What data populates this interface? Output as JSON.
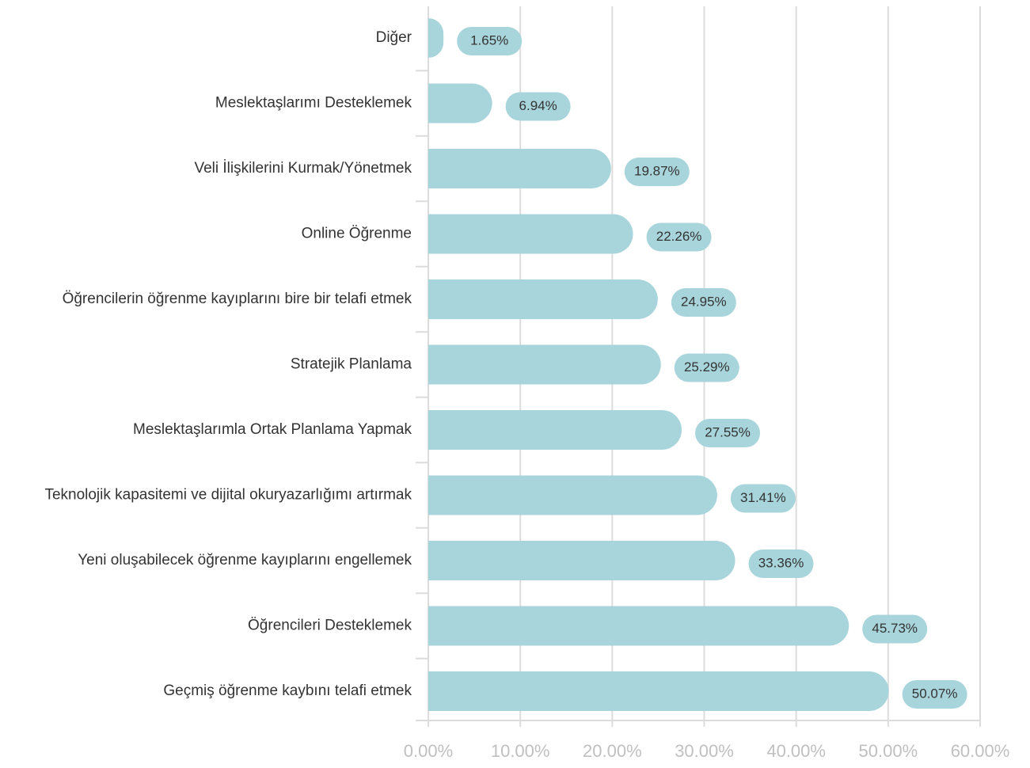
{
  "chart_data": {
    "type": "bar",
    "orientation": "horizontal",
    "categories": [
      "Diğer",
      "Meslektaşlarımı Desteklemek",
      "Veli İlişkilerini Kurmak/Yönetmek",
      "Online Öğrenme",
      "Öğrencilerin öğrenme kayıplarını bire bir telafi etmek",
      "Stratejik Planlama",
      "Meslektaşlarımla Ortak Planlama Yapmak",
      "Teknolojik kapasitemi ve dijital okuryazarlığımı artırmak",
      "Yeni oluşabilecek öğrenme kayıplarını engellemek",
      "Öğrencileri Desteklemek",
      "Geçmiş öğrenme kaybını telafi etmek"
    ],
    "values": [
      1.65,
      6.94,
      19.87,
      22.26,
      24.95,
      25.29,
      27.55,
      31.41,
      33.36,
      45.73,
      50.07
    ],
    "value_labels": [
      "1.65%",
      "6.94%",
      "19.87%",
      "22.26%",
      "24.95%",
      "25.29%",
      "27.55%",
      "31.41%",
      "33.36%",
      "45.73%",
      "50.07%"
    ],
    "color": "#a8d5db",
    "xlim": [
      0,
      60
    ],
    "xticks": [
      {
        "value": 0,
        "label": "0.00%"
      },
      {
        "value": 10,
        "label": "10.00%"
      },
      {
        "value": 20,
        "label": "20.00%"
      },
      {
        "value": 30,
        "label": "30.00%"
      },
      {
        "value": 40,
        "label": "40.00%"
      },
      {
        "value": 50,
        "label": "50.00%"
      },
      {
        "value": 60,
        "label": "60.00%"
      }
    ],
    "grid": true
  }
}
